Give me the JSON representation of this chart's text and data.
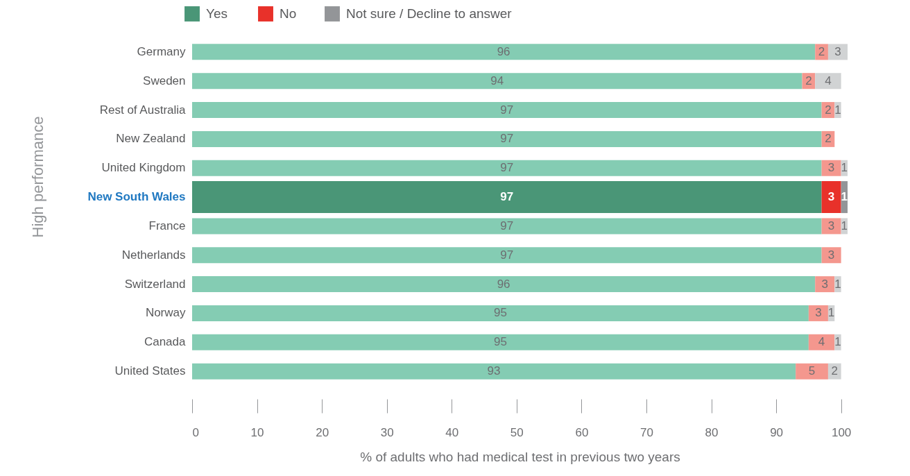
{
  "chart_data": {
    "type": "bar",
    "orientation": "horizontal",
    "stacked": true,
    "categories": [
      "Germany",
      "Sweden",
      "Rest of Australia",
      "New Zealand",
      "United Kingdom",
      "New South Wales",
      "France",
      "Netherlands",
      "Switzerland",
      "Norway",
      "Canada",
      "United States"
    ],
    "series": [
      {
        "name": "Yes",
        "color": "#4a9677",
        "colors": [
          "#84ccb3",
          "#84ccb3",
          "#84ccb3",
          "#84ccb3",
          "#84ccb3",
          "#4a9677",
          "#84ccb3",
          "#84ccb3",
          "#84ccb3",
          "#84ccb3",
          "#84ccb3",
          "#84ccb3"
        ],
        "values": [
          96,
          94,
          97,
          97,
          97,
          97,
          97,
          97,
          96,
          95,
          95,
          93
        ],
        "value_labels": [
          "96",
          "94",
          "97",
          "97",
          "97",
          "97",
          "97",
          "97",
          "96",
          "95",
          "95",
          "93"
        ]
      },
      {
        "name": "No",
        "color": "#e8312a",
        "colors": [
          "#f4978e",
          "#f4978e",
          "#f4978e",
          "#f4978e",
          "#f4978e",
          "#e8312a",
          "#f4978e",
          "#f4978e",
          "#f4978e",
          "#f4978e",
          "#f4978e",
          "#f4978e"
        ],
        "values": [
          2,
          2,
          2,
          2,
          3,
          3,
          3,
          3,
          3,
          3,
          4,
          5
        ],
        "value_labels": [
          "2",
          "2",
          "2",
          "2",
          "3",
          "3",
          "3",
          "3",
          "3",
          "3",
          "4",
          "5"
        ]
      },
      {
        "name": "Not sure / Decline to answer",
        "color": "#939598",
        "colors": [
          "#d1d3d4",
          "#d1d3d4",
          "#d1d3d4",
          "#d1d3d4",
          "#d1d3d4",
          "#939598",
          "#d1d3d4",
          "#d1d3d4",
          "#d1d3d4",
          "#d1d3d4",
          "#d1d3d4",
          "#d1d3d4"
        ],
        "values": [
          3,
          4,
          1,
          null,
          1,
          1,
          1,
          null,
          1,
          1,
          1,
          2
        ],
        "value_labels": [
          "3",
          "4",
          "1",
          null,
          "1",
          "1",
          "1",
          null,
          "1",
          "1",
          "1",
          "2"
        ]
      }
    ],
    "xlim": [
      0,
      101
    ],
    "xticks": [
      0,
      10,
      20,
      30,
      40,
      50,
      60,
      70,
      80,
      90,
      100
    ],
    "xlabel": "% of adults who had medical test in previous two years",
    "legend": "top",
    "grid": false,
    "annotations": [
      "High performance"
    ]
  }
}
